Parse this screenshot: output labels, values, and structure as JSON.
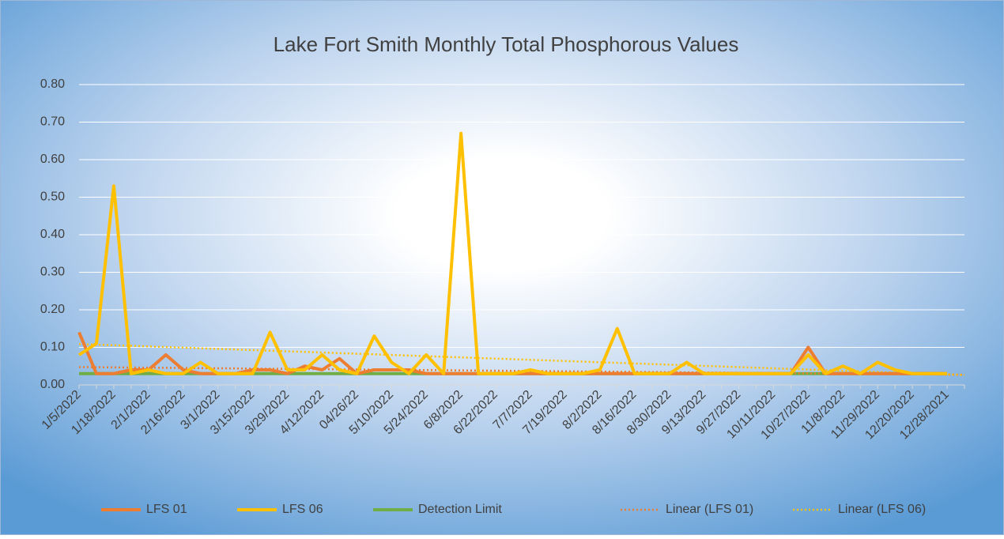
{
  "chart_data": {
    "type": "line",
    "title": "Lake Fort Smith Monthly Total Phosphorous Values",
    "categories": [
      "1/5/2022",
      null,
      "1/18/2022",
      null,
      "2/1/2022",
      null,
      "2/16/2022",
      null,
      "3/1/2022",
      null,
      "3/15/2022",
      null,
      "3/29/2022",
      null,
      "4/12/2022",
      null,
      "04/26/22",
      null,
      "5/10/2022",
      null,
      "5/24/2022",
      null,
      "6/8/2022",
      null,
      "6/22/2022",
      null,
      "7/7/2022",
      null,
      "7/19/2022",
      null,
      "8/2/2022",
      null,
      "8/16/2022",
      null,
      "8/30/2022",
      null,
      "9/13/2022",
      null,
      "9/27/2022",
      null,
      "10/11/2022",
      null,
      "10/27/2022",
      null,
      "11/8/2022",
      null,
      "11/29/2022",
      null,
      "12/20/2022",
      null,
      "12/28/2021",
      null
    ],
    "series": [
      {
        "name": "LFS 01",
        "color": "#ed7d31",
        "values": [
          0.14,
          0.03,
          0.03,
          0.04,
          0.04,
          0.08,
          0.04,
          0.03,
          0.03,
          0.03,
          0.04,
          0.04,
          0.03,
          0.05,
          0.04,
          0.07,
          0.03,
          0.04,
          0.04,
          0.04,
          0.03,
          0.03,
          0.03,
          0.03,
          0.03,
          0.03,
          0.03,
          0.03,
          0.03,
          0.03,
          0.03,
          0.03,
          0.03,
          0.03,
          0.03,
          0.03,
          0.03,
          0.03,
          0.03,
          0.03,
          0.03,
          0.03,
          0.1,
          0.03,
          0.03,
          0.03,
          0.03,
          0.03,
          0.03,
          0.03,
          0.03,
          null
        ]
      },
      {
        "name": "LFS 06",
        "color": "#ffc000",
        "values": [
          0.08,
          0.11,
          0.53,
          0.03,
          0.04,
          0.03,
          0.03,
          0.06,
          0.03,
          0.03,
          0.03,
          0.14,
          0.04,
          0.04,
          0.08,
          0.04,
          0.03,
          0.13,
          0.06,
          0.03,
          0.08,
          0.03,
          0.67,
          0.03,
          0.03,
          0.03,
          0.04,
          0.03,
          0.03,
          0.03,
          0.04,
          0.15,
          0.03,
          0.03,
          0.03,
          0.06,
          0.03,
          0.03,
          0.03,
          0.03,
          0.03,
          0.03,
          0.08,
          0.03,
          0.05,
          0.03,
          0.06,
          0.04,
          0.03,
          0.03,
          0.03,
          null
        ]
      },
      {
        "name": "Detection Limit",
        "color": "#70ad47",
        "values": [
          0.03,
          0.03,
          0.03,
          0.03,
          0.03,
          0.03,
          0.03,
          0.03,
          0.03,
          0.03,
          0.03,
          0.03,
          0.03,
          0.03,
          0.03,
          0.03,
          0.03,
          0.03,
          0.03,
          0.03,
          0.03,
          0.03,
          0.03,
          0.03,
          0.03,
          0.03,
          0.03,
          0.03,
          0.03,
          0.03,
          0.03,
          0.03,
          0.03,
          0.03,
          0.03,
          0.03,
          0.03,
          0.03,
          0.03,
          0.03,
          0.03,
          0.03,
          0.03,
          0.03,
          0.03,
          0.03,
          0.03,
          0.03,
          0.03,
          0.03,
          0.03,
          null
        ]
      },
      {
        "name": "Linear (LFS 01)",
        "color": "#ed7d31",
        "trend": 0
      },
      {
        "name": "Linear (LFS 06)",
        "color": "#ffc000",
        "trend": 1
      }
    ],
    "ylim": [
      0,
      0.8
    ],
    "yticks": [
      {
        "value": 0,
        "label": "0.00"
      },
      {
        "value": 0.1,
        "label": "0.10"
      },
      {
        "value": 0.2,
        "label": "0.20"
      },
      {
        "value": 0.3,
        "label": "0.30"
      },
      {
        "value": 0.4,
        "label": "0.40"
      },
      {
        "value": 0.5,
        "label": "0.50"
      },
      {
        "value": 0.6,
        "label": "0.60"
      },
      {
        "value": 0.7,
        "label": "0.70"
      },
      {
        "value": 0.8,
        "label": "0.80"
      }
    ],
    "grid": true,
    "legend": "bottom"
  }
}
